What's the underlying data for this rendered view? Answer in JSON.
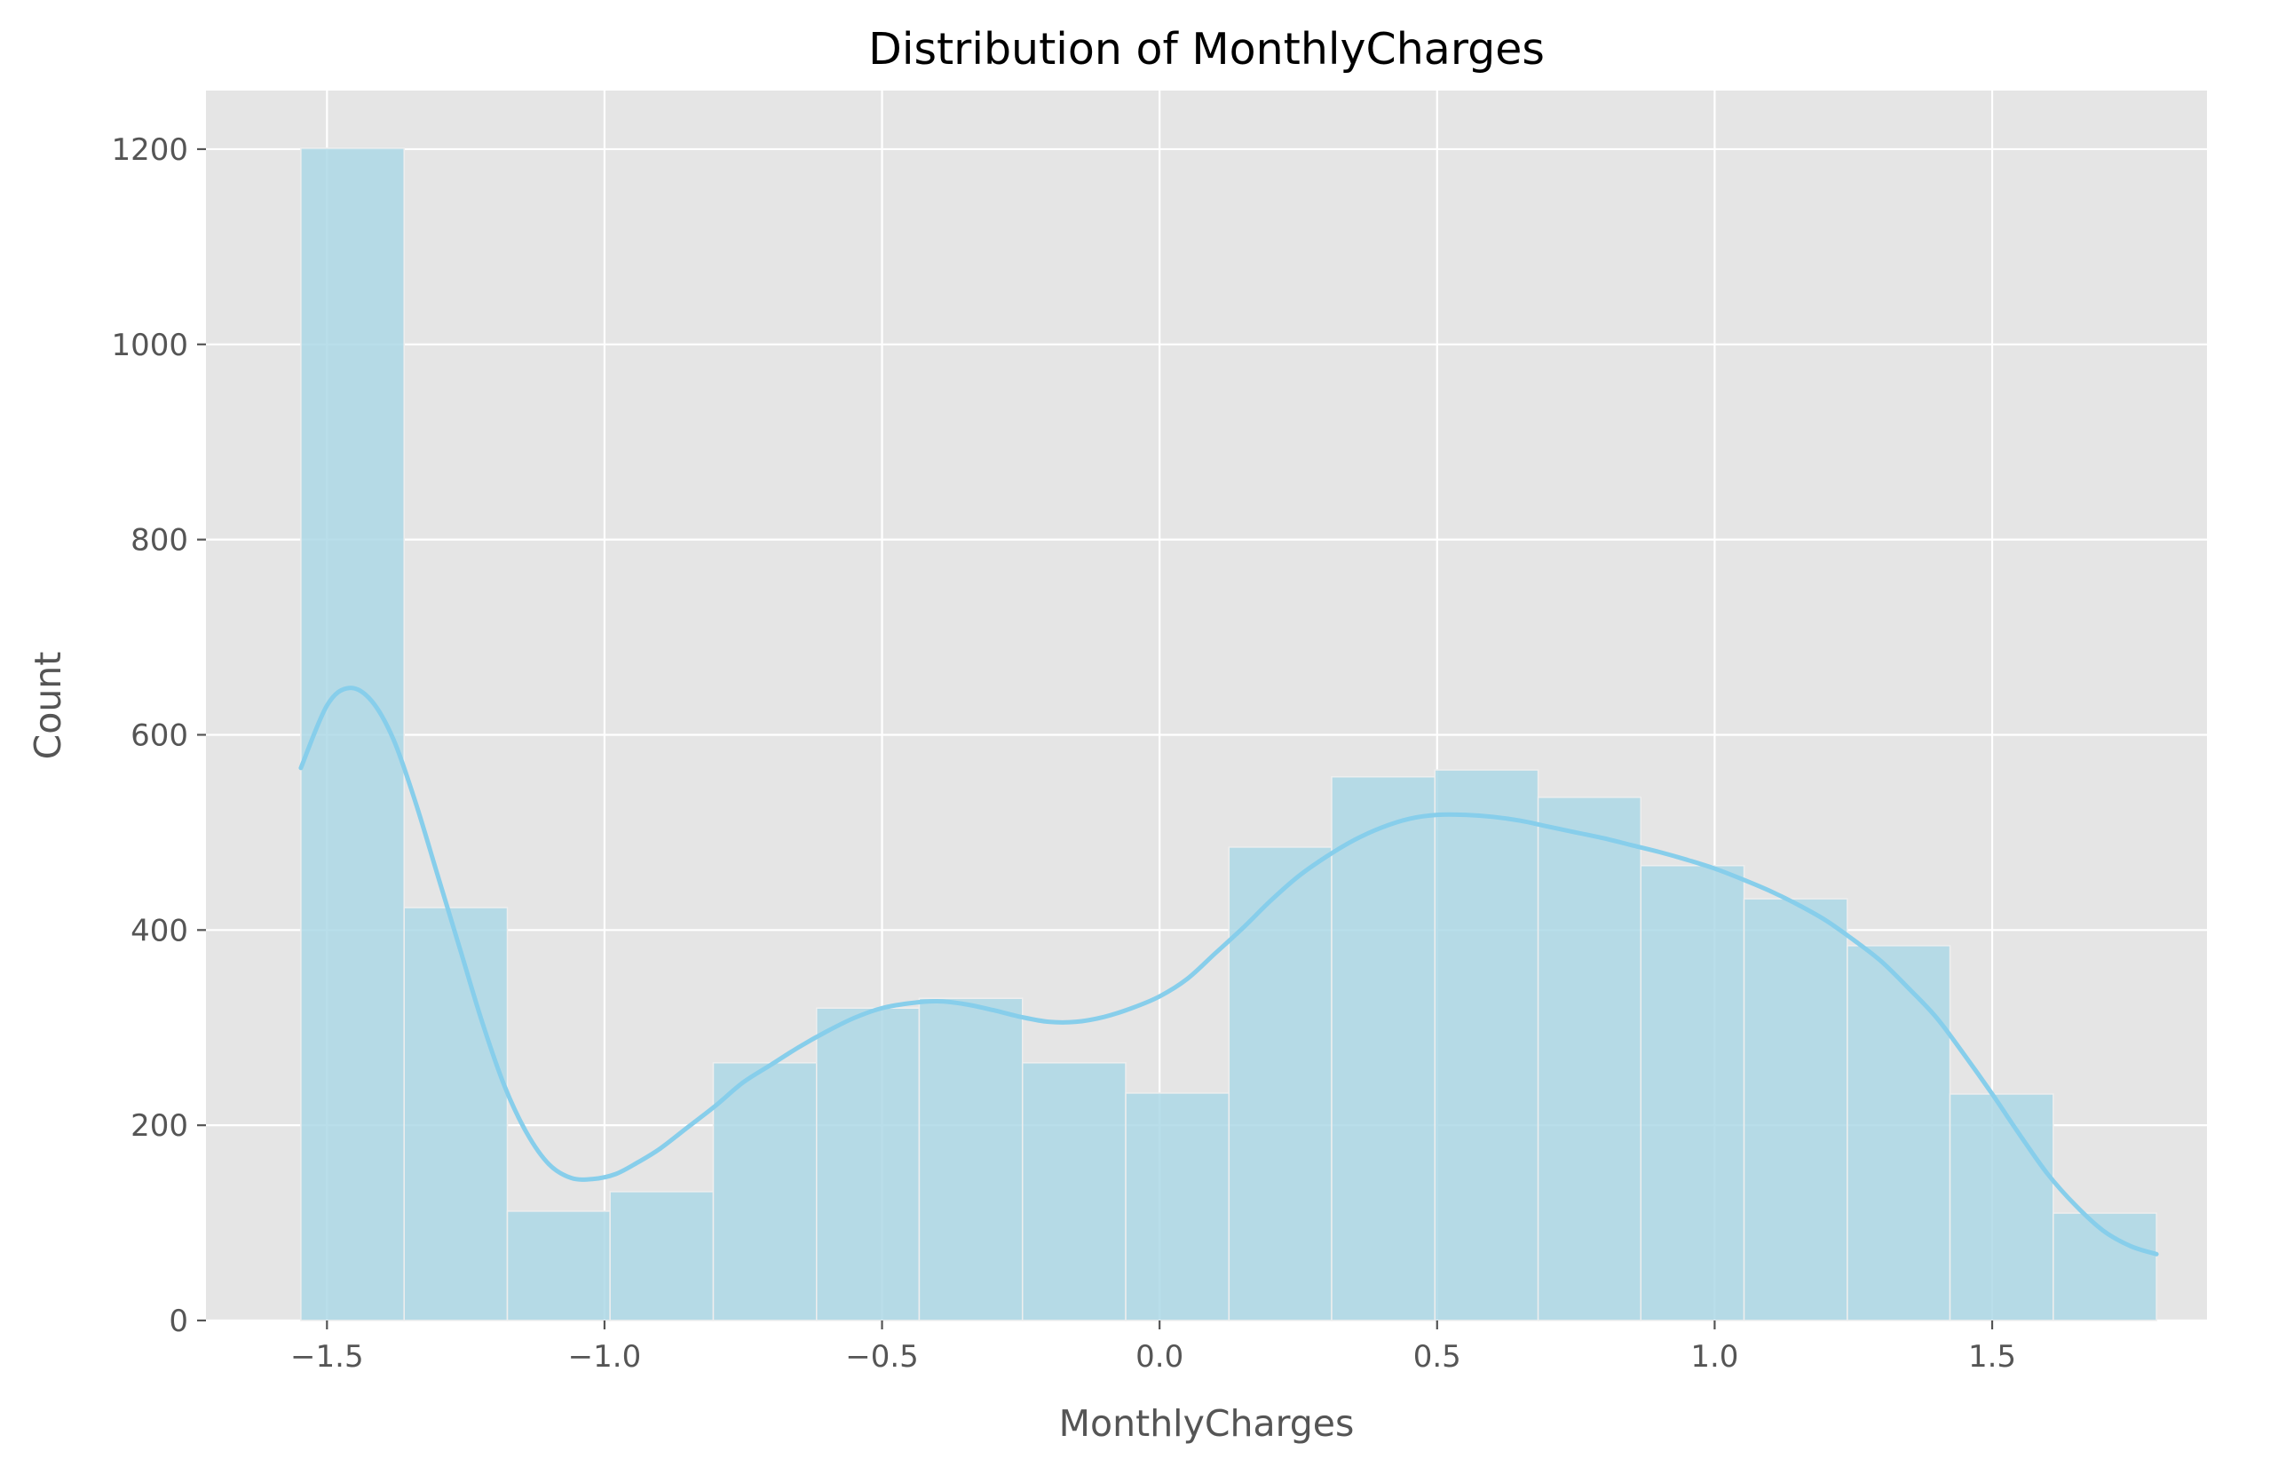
{
  "chart_data": {
    "type": "bar",
    "title": "Distribution of MonthlyCharges",
    "xlabel": "MonthlyCharges",
    "ylabel": "Count",
    "xlim": [
      -1.718,
      1.887
    ],
    "ylim": [
      0,
      1260
    ],
    "xticks": [
      {
        "value": -1.5,
        "label": "−1.5"
      },
      {
        "value": -1.0,
        "label": "−1.0"
      },
      {
        "value": -0.5,
        "label": "−0.5"
      },
      {
        "value": 0.0,
        "label": "0.0"
      },
      {
        "value": 0.5,
        "label": "0.5"
      },
      {
        "value": 1.0,
        "label": "1.0"
      },
      {
        "value": 1.5,
        "label": "1.5"
      }
    ],
    "yticks": [
      {
        "value": 0,
        "label": "0"
      },
      {
        "value": 200,
        "label": "200"
      },
      {
        "value": 400,
        "label": "400"
      },
      {
        "value": 600,
        "label": "600"
      },
      {
        "value": 800,
        "label": "800"
      },
      {
        "value": 1000,
        "label": "1000"
      },
      {
        "value": 1200,
        "label": "1200"
      }
    ],
    "grid": true,
    "bin_edges": [
      -1.547,
      -1.361,
      -1.175,
      -0.99,
      -0.804,
      -0.618,
      -0.433,
      -0.247,
      -0.061,
      0.125,
      0.31,
      0.496,
      0.682,
      0.867,
      1.053,
      1.239,
      1.424,
      1.61,
      1.796
    ],
    "values": [
      1201,
      423,
      112,
      132,
      264,
      320,
      330,
      264,
      233,
      485,
      557,
      564,
      536,
      466,
      432,
      384,
      232,
      110
    ],
    "kde": {
      "x": [
        -1.547,
        -1.5,
        -1.46,
        -1.42,
        -1.38,
        -1.34,
        -1.3,
        -1.26,
        -1.22,
        -1.18,
        -1.14,
        -1.1,
        -1.06,
        -1.02,
        -0.98,
        -0.94,
        -0.9,
        -0.85,
        -0.8,
        -0.75,
        -0.7,
        -0.65,
        -0.6,
        -0.55,
        -0.5,
        -0.45,
        -0.4,
        -0.35,
        -0.3,
        -0.25,
        -0.2,
        -0.15,
        -0.1,
        -0.05,
        0.0,
        0.05,
        0.1,
        0.15,
        0.2,
        0.25,
        0.3,
        0.35,
        0.4,
        0.45,
        0.5,
        0.55,
        0.6,
        0.65,
        0.7,
        0.75,
        0.8,
        0.85,
        0.9,
        0.95,
        1.0,
        1.05,
        1.1,
        1.15,
        1.2,
        1.25,
        1.3,
        1.35,
        1.4,
        1.45,
        1.5,
        1.55,
        1.6,
        1.65,
        1.7,
        1.75,
        1.796
      ],
      "y": [
        566,
        630,
        648,
        635,
        595,
        530,
        455,
        380,
        305,
        240,
        192,
        160,
        146,
        145,
        150,
        162,
        176,
        198,
        220,
        244,
        262,
        280,
        296,
        310,
        320,
        325,
        327,
        324,
        318,
        311,
        306,
        306,
        311,
        320,
        332,
        350,
        376,
        402,
        430,
        455,
        475,
        492,
        505,
        514,
        518,
        518,
        516,
        512,
        506,
        500,
        494,
        487,
        480,
        472,
        463,
        452,
        440,
        426,
        410,
        390,
        368,
        340,
        310,
        272,
        232,
        190,
        150,
        118,
        92,
        76,
        68
      ]
    },
    "colors": {
      "bar_fill": "#add8e6",
      "bar_edge": "#eeeeee",
      "kde_line": "#87ceeb",
      "plot_bg": "#e5e5e5",
      "grid": "#ffffff",
      "tick_text": "#555555",
      "title_text": "#000000"
    }
  }
}
